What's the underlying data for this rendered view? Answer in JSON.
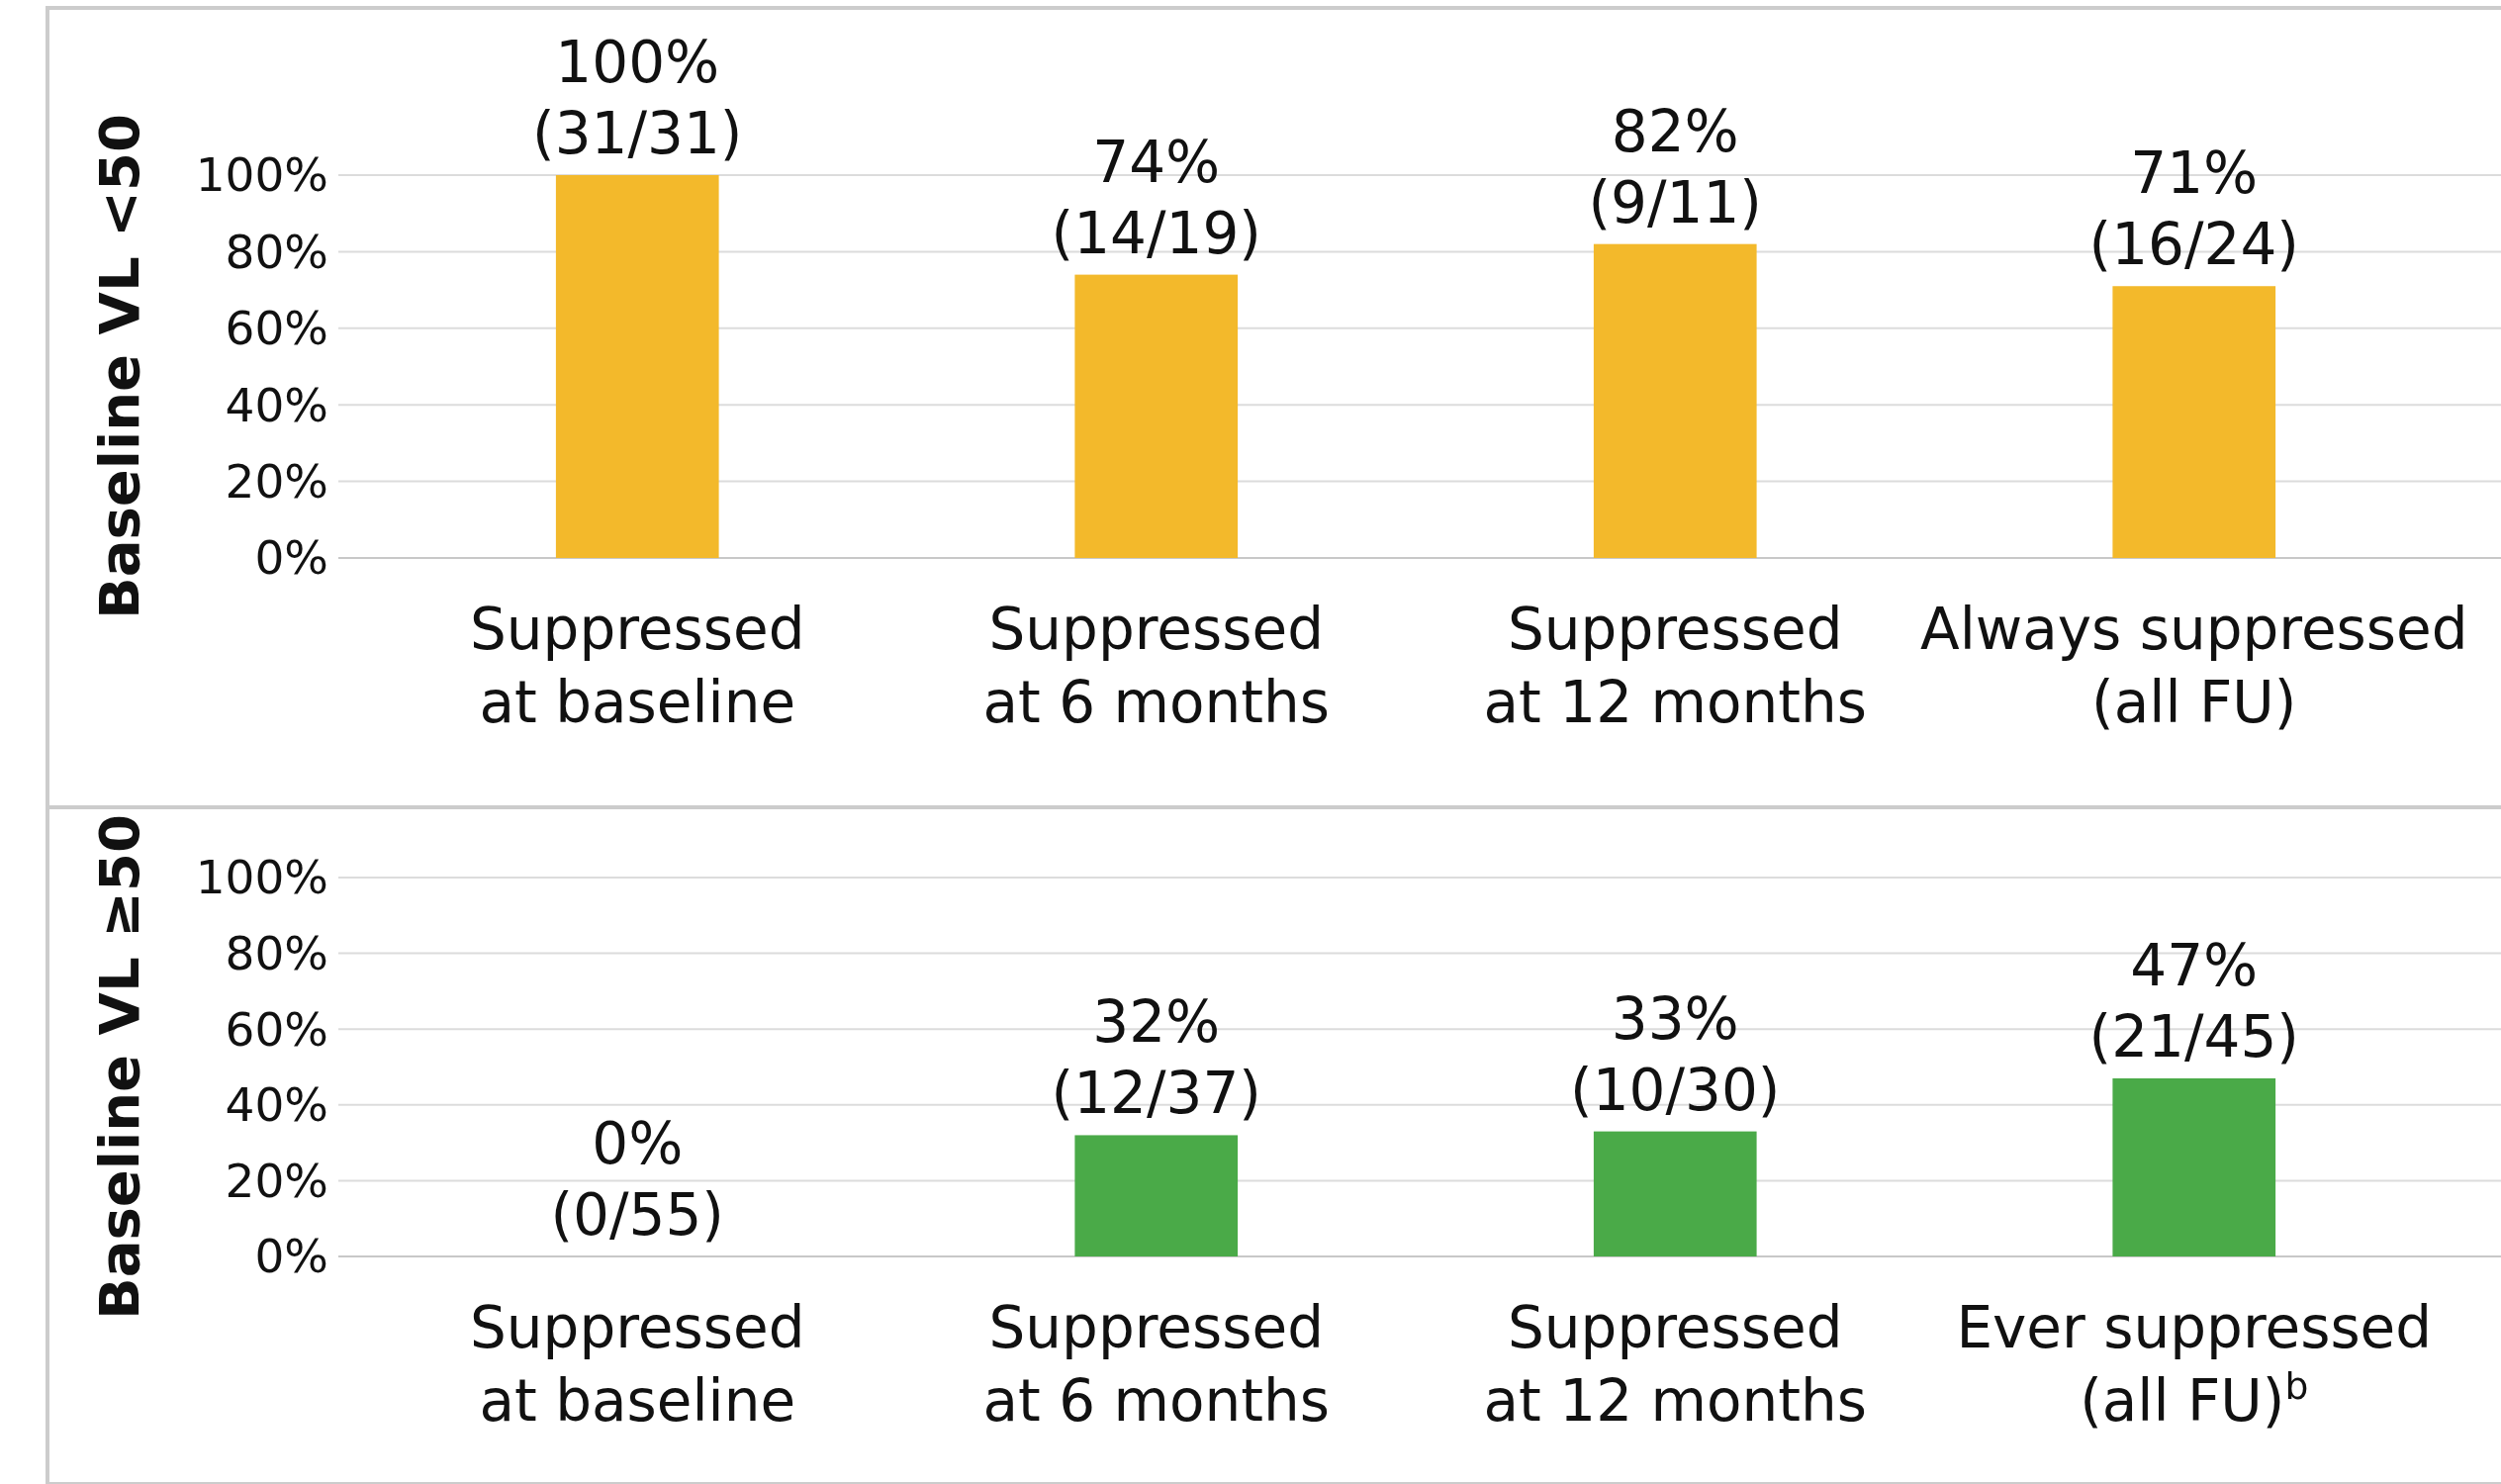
{
  "chart_data": [
    {
      "type": "bar",
      "ylabel": "Baseline VL <50",
      "categories": [
        "Suppressed\nat baseline",
        "Suppressed\nat 6 months",
        "Suppressed\nat 12 months",
        "Always suppressed\n(all FU)"
      ],
      "values": [
        100,
        74,
        82,
        71
      ],
      "color": "#f3b92b",
      "value_labels": [
        "100%\n(31/31)",
        "74%\n(14/19)",
        "82%\n(9/11)",
        "71%\n(16/24)"
      ],
      "ylim": [
        0,
        100
      ],
      "yticks": [
        {
          "value": 0,
          "label": "0%"
        },
        {
          "value": 20,
          "label": "20%"
        },
        {
          "value": 40,
          "label": "40%"
        },
        {
          "value": 60,
          "label": "60%"
        },
        {
          "value": 80,
          "label": "80%"
        },
        {
          "value": 100,
          "label": "100%"
        }
      ],
      "grid": "y"
    },
    {
      "type": "bar",
      "ylabel": "Baseline VL ≥50",
      "categories": [
        "Suppressed\nat baseline",
        "Suppressed\nat 6 months",
        "Suppressed\nat 12 months",
        "Ever suppressed\n(all FU)$^{b}$"
      ],
      "values": [
        0,
        32,
        33,
        47
      ],
      "color": "#4aaa48",
      "value_labels": [
        "0%\n(0/55)",
        "32%\n(12/37)",
        "33%\n(10/30)",
        "47%\n(21/45)"
      ],
      "ylim": [
        0,
        100
      ],
      "yticks": [
        {
          "value": 0,
          "label": "0%"
        },
        {
          "value": 20,
          "label": "20%"
        },
        {
          "value": 40,
          "label": "40%"
        },
        {
          "value": 60,
          "label": "60%"
        },
        {
          "value": 80,
          "label": "80%"
        },
        {
          "value": 100,
          "label": "100%"
        }
      ],
      "grid": "y"
    }
  ]
}
